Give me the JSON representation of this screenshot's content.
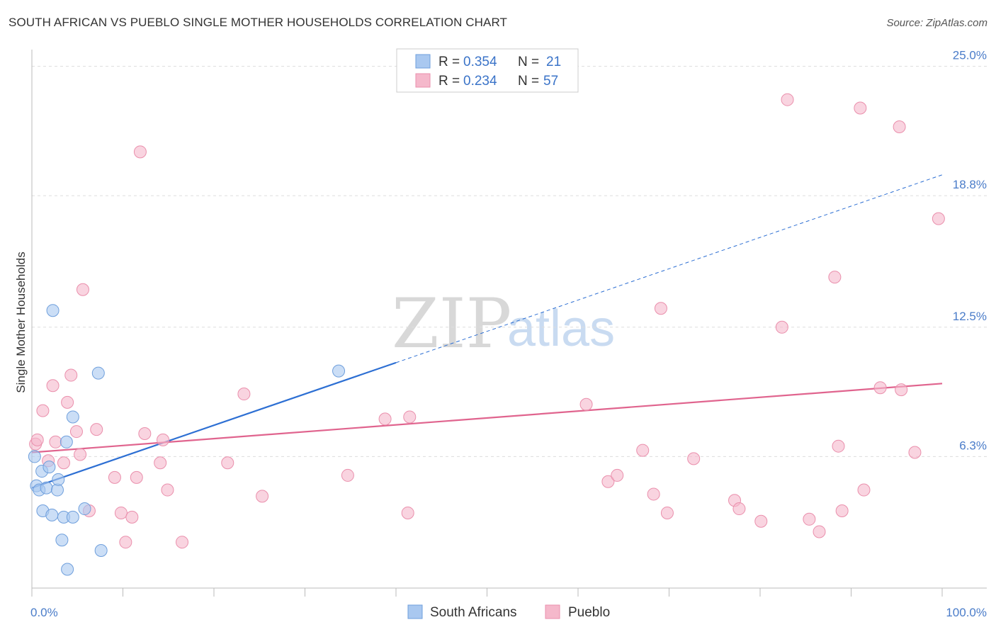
{
  "header": {
    "title": "SOUTH AFRICAN VS PUEBLO SINGLE MOTHER HOUSEHOLDS CORRELATION CHART",
    "source": "Source: ZipAtlas.com"
  },
  "watermark": {
    "zip": "ZIP",
    "atlas": "atlas"
  },
  "legend": {
    "rows": [
      {
        "r_label": "R =",
        "r_value": "0.354",
        "n_label": "N =",
        "n_value": "21",
        "color": "#a9c8f0"
      },
      {
        "r_label": "R =",
        "r_value": "0.234",
        "n_label": "N =",
        "n_value": "57",
        "color": "#f5b8cb"
      }
    ]
  },
  "bottom_legend": {
    "items": [
      {
        "label": "South Africans",
        "color": "#a9c8f0"
      },
      {
        "label": "Pueblo",
        "color": "#f5b8cb"
      }
    ]
  },
  "chart_data": {
    "type": "scatter",
    "title": "SOUTH AFRICAN VS PUEBLO SINGLE MOTHER HOUSEHOLDS CORRELATION CHART",
    "xlabel": "",
    "ylabel": "Single Mother Households",
    "xlim": [
      0,
      100
    ],
    "ylim": [
      0,
      25.8
    ],
    "x_tick_labels": [
      "0.0%",
      "100.0%"
    ],
    "y_ticks": [
      6.3,
      12.5,
      18.8,
      25.0
    ],
    "y_tick_labels": [
      "6.3%",
      "12.5%",
      "18.8%",
      "25.0%"
    ],
    "grid": true,
    "colors": {
      "blue_fill": "#a9c8f0",
      "blue_stroke": "#6f9fdc",
      "blue_line": "#2d6fd3",
      "pink_fill": "#f5b8cb",
      "pink_stroke": "#ea8fac",
      "pink_line": "#e0648e"
    },
    "series": [
      {
        "name": "South Africans",
        "points": [
          [
            0.3,
            6.3
          ],
          [
            0.5,
            4.9
          ],
          [
            0.8,
            4.7
          ],
          [
            1.1,
            5.6
          ],
          [
            1.2,
            3.7
          ],
          [
            1.6,
            4.8
          ],
          [
            1.9,
            5.8
          ],
          [
            2.2,
            3.5
          ],
          [
            2.3,
            13.3
          ],
          [
            2.8,
            4.7
          ],
          [
            2.9,
            5.2
          ],
          [
            3.3,
            2.3
          ],
          [
            3.5,
            3.4
          ],
          [
            3.8,
            7.0
          ],
          [
            3.9,
            0.9
          ],
          [
            4.5,
            8.2
          ],
          [
            4.5,
            3.4
          ],
          [
            5.8,
            3.8
          ],
          [
            7.3,
            10.3
          ],
          [
            7.6,
            1.8
          ],
          [
            33.7,
            10.4
          ]
        ],
        "trend": {
          "x0": 0,
          "y0": 4.8,
          "x1": 40,
          "y1": 10.8,
          "dash_to_x": 100,
          "dash_to_y": 19.8
        }
      },
      {
        "name": "Pueblo",
        "points": [
          [
            0.4,
            6.9
          ],
          [
            0.6,
            7.1
          ],
          [
            1.2,
            8.5
          ],
          [
            1.8,
            6.1
          ],
          [
            2.3,
            9.7
          ],
          [
            2.6,
            7.0
          ],
          [
            3.5,
            6.0
          ],
          [
            3.9,
            8.9
          ],
          [
            4.3,
            10.2
          ],
          [
            4.9,
            7.5
          ],
          [
            5.3,
            6.4
          ],
          [
            5.6,
            14.3
          ],
          [
            6.3,
            3.7
          ],
          [
            7.1,
            7.6
          ],
          [
            9.1,
            5.3
          ],
          [
            9.8,
            3.6
          ],
          [
            10.3,
            2.2
          ],
          [
            11.0,
            3.4
          ],
          [
            11.5,
            5.3
          ],
          [
            11.9,
            20.9
          ],
          [
            12.4,
            7.4
          ],
          [
            14.1,
            6.0
          ],
          [
            14.4,
            7.1
          ],
          [
            14.9,
            4.7
          ],
          [
            16.5,
            2.2
          ],
          [
            21.5,
            6.0
          ],
          [
            23.3,
            9.3
          ],
          [
            25.3,
            4.4
          ],
          [
            34.7,
            5.4
          ],
          [
            38.8,
            8.1
          ],
          [
            41.3,
            3.6
          ],
          [
            41.5,
            8.2
          ],
          [
            60.9,
            8.8
          ],
          [
            63.3,
            5.1
          ],
          [
            64.3,
            5.4
          ],
          [
            67.1,
            6.6
          ],
          [
            68.3,
            4.5
          ],
          [
            69.1,
            13.4
          ],
          [
            69.8,
            3.6
          ],
          [
            72.7,
            6.2
          ],
          [
            77.2,
            4.2
          ],
          [
            77.7,
            3.8
          ],
          [
            80.1,
            3.2
          ],
          [
            82.4,
            12.5
          ],
          [
            83.0,
            23.4
          ],
          [
            85.4,
            3.3
          ],
          [
            86.5,
            2.7
          ],
          [
            88.2,
            14.9
          ],
          [
            88.6,
            6.8
          ],
          [
            89.0,
            3.7
          ],
          [
            91.0,
            23.0
          ],
          [
            91.4,
            4.7
          ],
          [
            93.2,
            9.6
          ],
          [
            95.3,
            22.1
          ],
          [
            95.5,
            9.5
          ],
          [
            97.0,
            6.5
          ],
          [
            99.6,
            17.7
          ]
        ],
        "trend": {
          "x0": 0,
          "y0": 6.5,
          "x1": 100,
          "y1": 9.8
        }
      }
    ]
  }
}
